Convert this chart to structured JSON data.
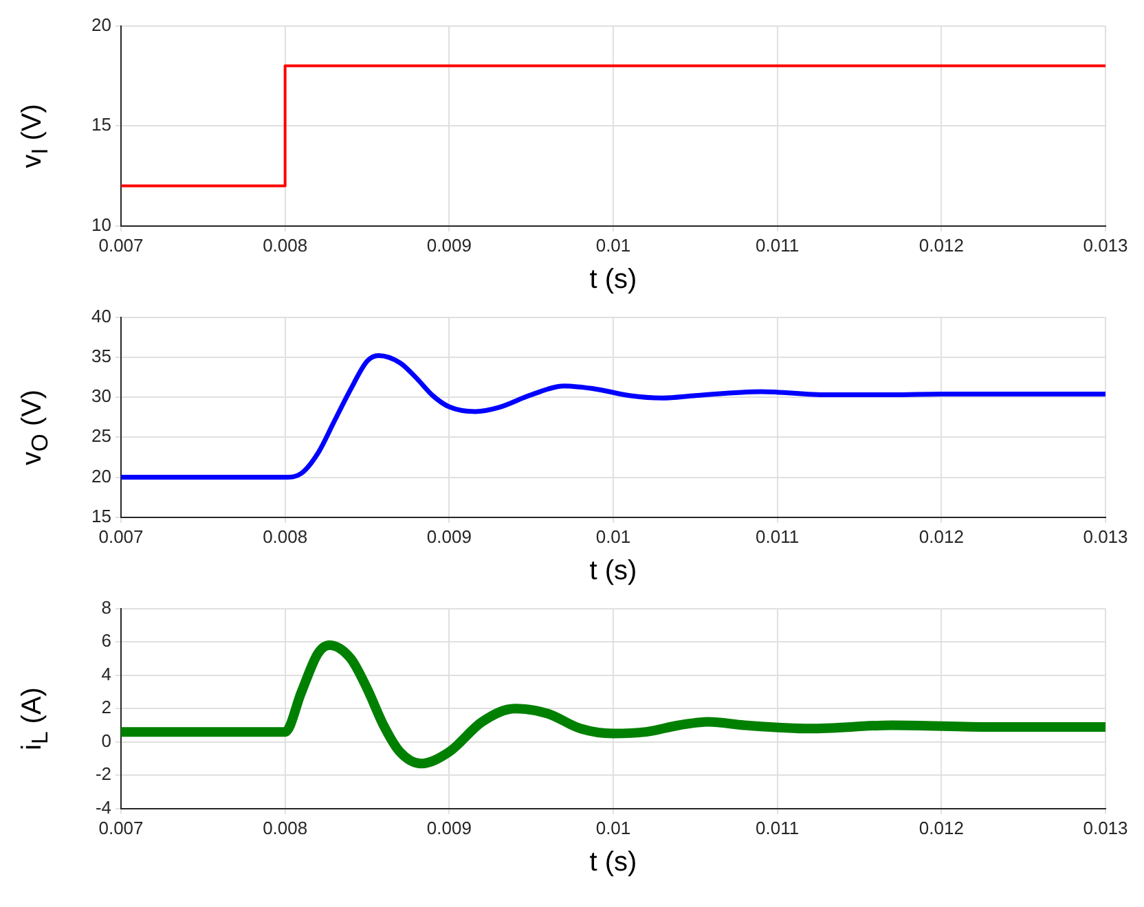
{
  "chart_data": [
    {
      "type": "step",
      "xlabel": "t (s)",
      "ylabel": "v$_{I}$ (V)",
      "x": [
        0.007,
        0.008,
        0.013
      ],
      "series": [
        {
          "color": "#ff0000",
          "values": [
            12,
            18,
            18
          ]
        }
      ],
      "xlim": [
        0.007,
        0.013
      ],
      "xticks": [
        0.007,
        0.008,
        0.009,
        0.01,
        0.011,
        0.012,
        0.013
      ],
      "ylim": [
        10,
        20
      ],
      "yticks": [
        10,
        15,
        20
      ],
      "grid": true
    },
    {
      "type": "line",
      "xlabel": "t (s)",
      "ylabel": "v$_{O}$ (V)",
      "x": [
        0.007,
        0.008,
        0.0081,
        0.0082,
        0.0083,
        0.0084,
        0.0085,
        0.00857,
        0.0087,
        0.0088,
        0.0089,
        0.009,
        0.00916,
        0.0093,
        0.0095,
        0.0097,
        0.0099,
        0.0101,
        0.0103,
        0.0105,
        0.0109,
        0.0113,
        0.0117,
        0.012,
        0.013
      ],
      "series": [
        {
          "color": "#0000ff",
          "values": [
            20,
            20,
            20.5,
            23,
            27,
            31,
            34.5,
            35.2,
            34.3,
            32.4,
            30.2,
            28.8,
            28.2,
            28.7,
            30.3,
            31.4,
            31,
            30.2,
            29.9,
            30.2,
            30.7,
            30.3,
            30.3,
            30.4,
            30.4
          ]
        }
      ],
      "xlim": [
        0.007,
        0.013
      ],
      "xticks": [
        0.007,
        0.008,
        0.009,
        0.01,
        0.011,
        0.012,
        0.013
      ],
      "ylim": [
        15,
        40
      ],
      "yticks": [
        15,
        20,
        25,
        30,
        35,
        40
      ],
      "grid": true
    },
    {
      "type": "line",
      "xlabel": "t (s)",
      "ylabel": "i$_{L}$ (A)",
      "x": [
        0.007,
        0.008,
        0.0081,
        0.0082,
        0.00827,
        0.0084,
        0.0085,
        0.0086,
        0.0087,
        0.00883,
        0.009,
        0.0092,
        0.0094,
        0.0096,
        0.0098,
        0.01,
        0.0102,
        0.0104,
        0.01058,
        0.0108,
        0.0112,
        0.0117,
        0.0123,
        0.013
      ],
      "series": [
        {
          "color": "#008000",
          "values": [
            0.6,
            0.6,
            3,
            5.3,
            5.8,
            5,
            3.2,
            1,
            -0.6,
            -1.3,
            -0.6,
            1.2,
            2,
            1.7,
            0.8,
            0.5,
            0.6,
            1,
            1.2,
            1,
            0.8,
            1,
            0.9,
            0.9
          ]
        }
      ],
      "xlim": [
        0.007,
        0.013
      ],
      "xticks": [
        0.007,
        0.008,
        0.009,
        0.01,
        0.011,
        0.012,
        0.013
      ],
      "ylim": [
        -4,
        8
      ],
      "yticks": [
        -4,
        -2,
        0,
        2,
        4,
        6,
        8
      ],
      "grid": true
    }
  ]
}
